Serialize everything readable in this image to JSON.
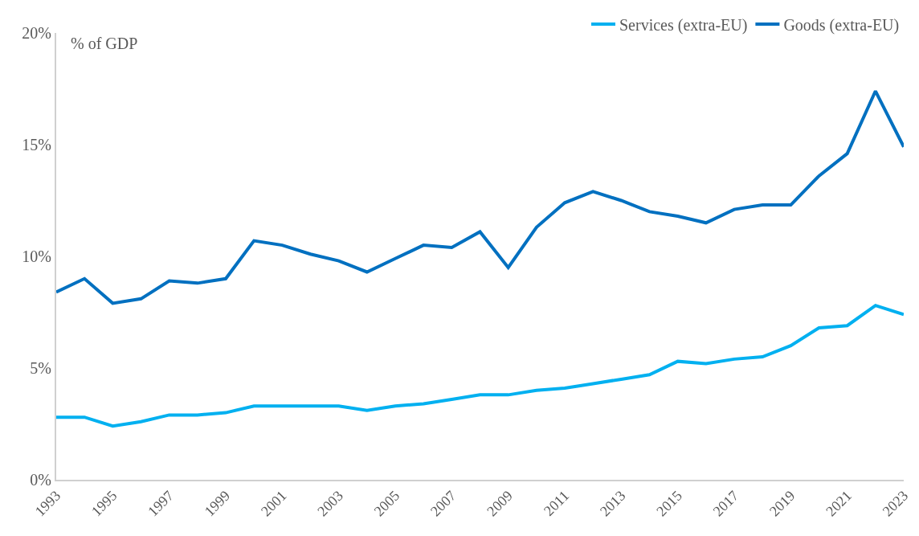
{
  "chart_data": {
    "type": "line",
    "ylabel": "% of GDP",
    "x": [
      1993,
      1994,
      1995,
      1996,
      1997,
      1998,
      1999,
      2000,
      2001,
      2002,
      2003,
      2004,
      2005,
      2006,
      2007,
      2008,
      2009,
      2010,
      2011,
      2012,
      2013,
      2014,
      2015,
      2016,
      2017,
      2018,
      2019,
      2020,
      2021,
      2022,
      2023
    ],
    "series": [
      {
        "name": "Services (extra-EU)",
        "color": "#00b0f0",
        "values": [
          2.8,
          2.8,
          2.4,
          2.6,
          2.9,
          2.9,
          3.0,
          3.3,
          3.3,
          3.3,
          3.3,
          3.1,
          3.3,
          3.4,
          3.6,
          3.8,
          3.8,
          4.0,
          4.1,
          4.3,
          4.5,
          4.7,
          5.3,
          5.2,
          5.4,
          5.5,
          6.0,
          6.8,
          6.9,
          7.8,
          7.4
        ]
      },
      {
        "name": "Goods (extra-EU)",
        "color": "#0070c0",
        "values": [
          8.4,
          9.0,
          7.9,
          8.1,
          8.9,
          8.8,
          9.0,
          10.7,
          10.5,
          10.1,
          9.8,
          9.3,
          9.9,
          10.5,
          10.4,
          11.1,
          9.5,
          11.3,
          12.4,
          12.9,
          12.5,
          12.0,
          11.8,
          11.5,
          12.1,
          12.3,
          12.3,
          13.6,
          14.6,
          17.4,
          14.9
        ]
      }
    ],
    "xlim": [
      1993,
      2023
    ],
    "xticks": [
      1993,
      1995,
      1997,
      1999,
      2001,
      2003,
      2005,
      2007,
      2009,
      2011,
      2013,
      2015,
      2017,
      2019,
      2021,
      2023
    ],
    "ylim": [
      0,
      20
    ],
    "yticks": [
      {
        "value": 0,
        "label": "0%"
      },
      {
        "value": 5,
        "label": "5%"
      },
      {
        "value": 10,
        "label": "10%"
      },
      {
        "value": 15,
        "label": "15%"
      },
      {
        "value": 20,
        "label": "20%"
      }
    ],
    "legend": "top right",
    "marker": "none",
    "line_style": "solid"
  }
}
